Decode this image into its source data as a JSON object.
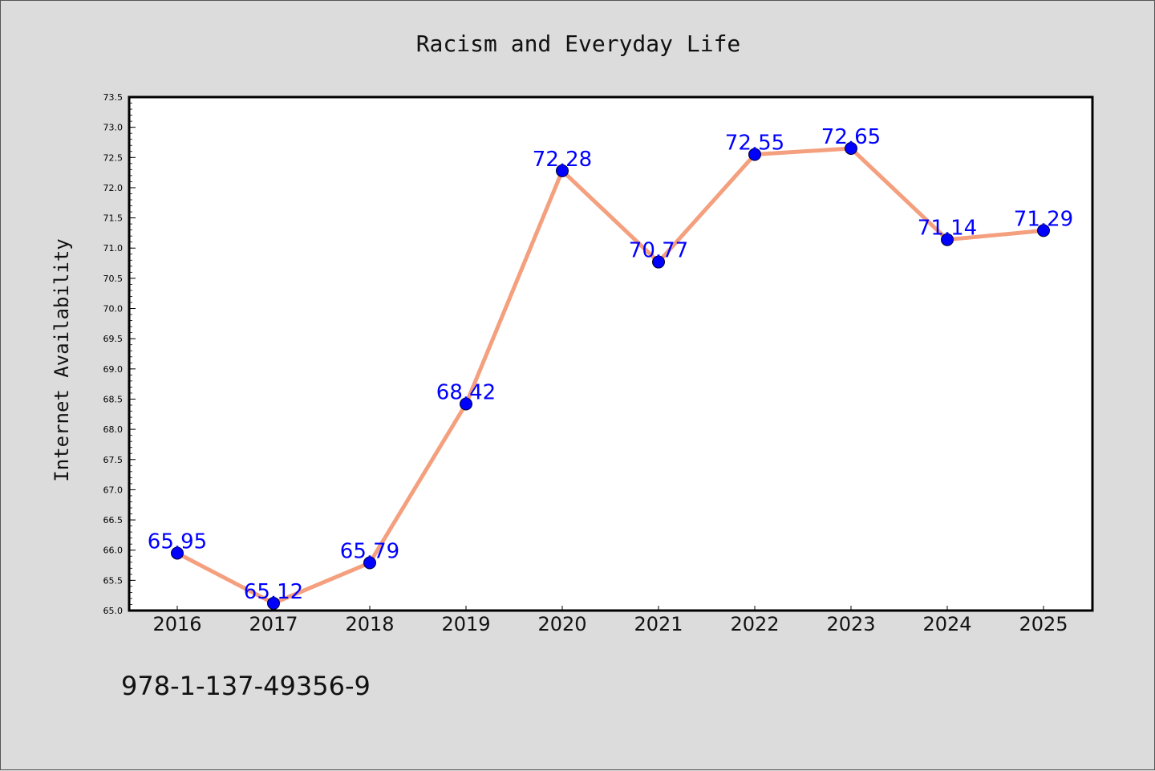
{
  "footer": {
    "isbn": "978-1-137-49356-9"
  },
  "colors": {
    "line": "#f4a07e",
    "marker": "#0000ff",
    "label": "#0000ff",
    "plot_bg": "#ffffff",
    "page_bg": "#dcdcdc"
  },
  "chart_data": {
    "type": "line",
    "title": "Racism and Everyday Life",
    "xlabel": "",
    "ylabel": "Internet Availability",
    "categories": [
      "2016",
      "2017",
      "2018",
      "2019",
      "2020",
      "2021",
      "2022",
      "2023",
      "2024",
      "2025"
    ],
    "series": [
      {
        "values": [
          65.95,
          65.12,
          65.79,
          68.42,
          72.28,
          70.77,
          72.55,
          72.65,
          71.14,
          71.29
        ],
        "labels": [
          "65.95",
          "65.12",
          "65.79",
          "68.42",
          "72.28",
          "70.77",
          "72.55",
          "72.65",
          "71.14",
          "71.29"
        ]
      }
    ],
    "ylim": [
      65.0,
      73.5
    ],
    "yticks": [
      "65.0",
      "65.5",
      "66.0",
      "66.5",
      "67.0",
      "67.5",
      "68.0",
      "68.5",
      "69.0",
      "69.5",
      "70.0",
      "70.5",
      "71.0",
      "71.5",
      "72.0",
      "72.5",
      "73.0",
      "73.5"
    ],
    "grid": false,
    "legend": "none"
  }
}
